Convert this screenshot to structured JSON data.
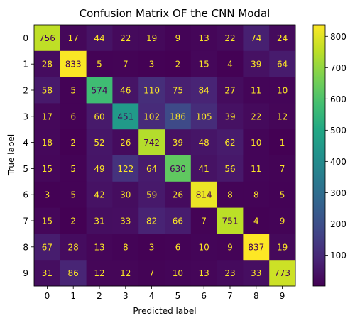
{
  "chart_data": {
    "type": "heatmap",
    "title": "Confusion Matrix OF the CNN Modal",
    "xlabel": "Predicted label",
    "ylabel": "True label",
    "x_categories": [
      "0",
      "1",
      "2",
      "3",
      "4",
      "5",
      "6",
      "7",
      "8",
      "9"
    ],
    "y_categories": [
      "0",
      "1",
      "2",
      "3",
      "4",
      "5",
      "6",
      "7",
      "8",
      "9"
    ],
    "values": [
      [
        756,
        17,
        44,
        22,
        19,
        9,
        13,
        22,
        74,
        24
      ],
      [
        28,
        833,
        5,
        7,
        3,
        2,
        15,
        4,
        39,
        64
      ],
      [
        58,
        5,
        574,
        46,
        110,
        75,
        84,
        27,
        11,
        10
      ],
      [
        17,
        6,
        60,
        451,
        102,
        186,
        105,
        39,
        22,
        12
      ],
      [
        18,
        2,
        52,
        26,
        742,
        39,
        48,
        62,
        10,
        1
      ],
      [
        15,
        5,
        49,
        122,
        64,
        630,
        41,
        56,
        11,
        7
      ],
      [
        3,
        5,
        42,
        30,
        59,
        26,
        814,
        8,
        8,
        5
      ],
      [
        15,
        2,
        31,
        33,
        82,
        66,
        7,
        751,
        4,
        9
      ],
      [
        67,
        28,
        13,
        8,
        3,
        6,
        10,
        9,
        837,
        19
      ],
      [
        31,
        86,
        12,
        12,
        7,
        10,
        13,
        23,
        33,
        773
      ]
    ],
    "colormap": "viridis",
    "value_range": [
      1,
      837
    ],
    "colorbar_ticks": [
      100,
      200,
      300,
      400,
      500,
      600,
      700,
      800
    ],
    "text_color_dark_cells": "#fde725",
    "text_color_light_cells": "#440154"
  }
}
